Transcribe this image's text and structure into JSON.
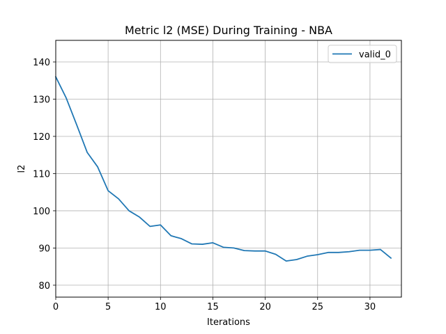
{
  "chart_data": {
    "type": "line",
    "title": "Metric l2 (MSE) During Training - NBA",
    "xlabel": "Iterations",
    "ylabel": "l2",
    "xlim": [
      0,
      33
    ],
    "ylim": [
      76.8,
      145.8
    ],
    "xticks": [
      0,
      5,
      10,
      15,
      20,
      25,
      30
    ],
    "yticks": [
      80,
      90,
      100,
      110,
      120,
      130,
      140
    ],
    "grid": true,
    "legend": "top-right",
    "series": [
      {
        "name": "valid_0",
        "color": "#1f77b4",
        "x": [
          0,
          1,
          2,
          3,
          4,
          5,
          6,
          7,
          8,
          9,
          10,
          11,
          12,
          13,
          14,
          15,
          16,
          17,
          18,
          19,
          20,
          21,
          22,
          23,
          24,
          25,
          26,
          27,
          28,
          29,
          30,
          31,
          32
        ],
        "values": [
          136.0,
          130.3,
          123.1,
          115.7,
          111.8,
          105.4,
          103.2,
          100.0,
          98.3,
          95.8,
          96.2,
          93.3,
          92.5,
          91.1,
          91.0,
          91.4,
          90.2,
          90.0,
          89.3,
          89.2,
          89.2,
          88.3,
          86.5,
          86.9,
          87.8,
          88.2,
          88.8,
          88.8,
          89.0,
          89.4,
          89.4,
          89.6,
          87.3
        ]
      }
    ]
  }
}
